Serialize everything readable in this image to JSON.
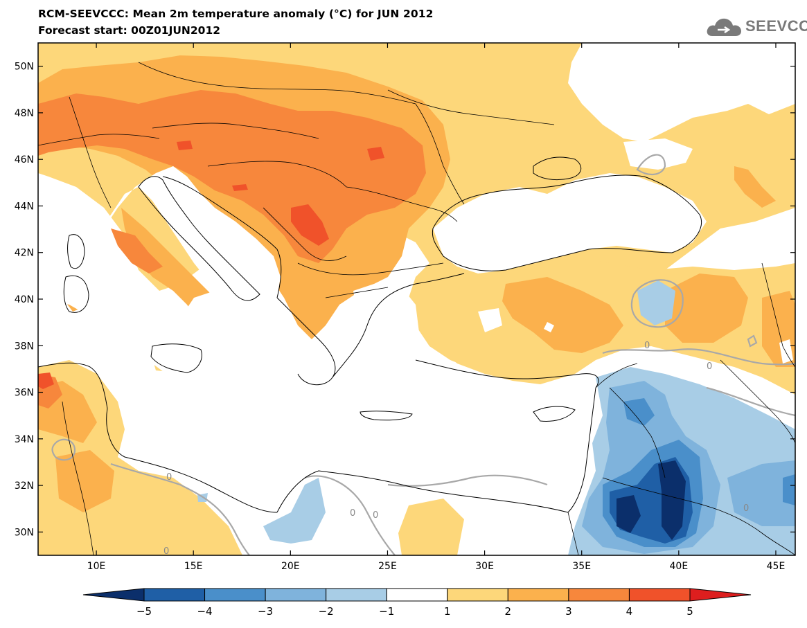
{
  "header": {
    "title": "RCM-SEEVCCC: Mean 2m temperature anomaly (°C) for JUN 2012",
    "subtitle": "Forecast start: 00Z01JUN2012"
  },
  "logo": {
    "text": "SEEVCCC",
    "icon": "cloud-icon"
  },
  "map": {
    "lon_range": [
      7,
      46
    ],
    "lat_range": [
      29,
      51
    ],
    "lon_ticks": [
      {
        "value": 10,
        "label": "10E"
      },
      {
        "value": 15,
        "label": "15E"
      },
      {
        "value": 20,
        "label": "20E"
      },
      {
        "value": 25,
        "label": "25E"
      },
      {
        "value": 30,
        "label": "30E"
      },
      {
        "value": 35,
        "label": "35E"
      },
      {
        "value": 40,
        "label": "40E"
      },
      {
        "value": 45,
        "label": "45E"
      }
    ],
    "lat_ticks": [
      {
        "value": 30,
        "label": "30N"
      },
      {
        "value": 32,
        "label": "32N"
      },
      {
        "value": 34,
        "label": "34N"
      },
      {
        "value": 36,
        "label": "36N"
      },
      {
        "value": 38,
        "label": "38N"
      },
      {
        "value": 40,
        "label": "40N"
      },
      {
        "value": 42,
        "label": "42N"
      },
      {
        "value": 44,
        "label": "44N"
      },
      {
        "value": 46,
        "label": "46N"
      },
      {
        "value": 48,
        "label": "48N"
      },
      {
        "value": 50,
        "label": "50N"
      }
    ],
    "contour_labels": [
      "0",
      "0",
      "0",
      "0",
      "0",
      "0",
      "0"
    ]
  },
  "colorbar": {
    "labels": [
      "−5",
      "−4",
      "−3",
      "−2",
      "−1",
      "1",
      "2",
      "3",
      "4",
      "5"
    ],
    "colors": [
      "#0b2f6b",
      "#1f5fa6",
      "#4a8fca",
      "#7fb3dc",
      "#a8cde6",
      "#ffffff",
      "#fdd77a",
      "#fbb14d",
      "#f7873c",
      "#f0522a",
      "#dd1e1e"
    ]
  },
  "colors": {
    "anom_1_2": "#fdd77a",
    "anom_2_3": "#fbb14d",
    "anom_3_4": "#f7873c",
    "anom_4_5": "#f0522a",
    "anom_gt5": "#dd1e1e",
    "anom_m1_m2": "#a8cde6",
    "anom_m2_m3": "#7fb3dc",
    "anom_m3_m4": "#4a8fca",
    "anom_m4_m5": "#1f5fa6",
    "anom_lt_m5": "#0b2f6b",
    "contour_zero": "#a8a8a8"
  }
}
